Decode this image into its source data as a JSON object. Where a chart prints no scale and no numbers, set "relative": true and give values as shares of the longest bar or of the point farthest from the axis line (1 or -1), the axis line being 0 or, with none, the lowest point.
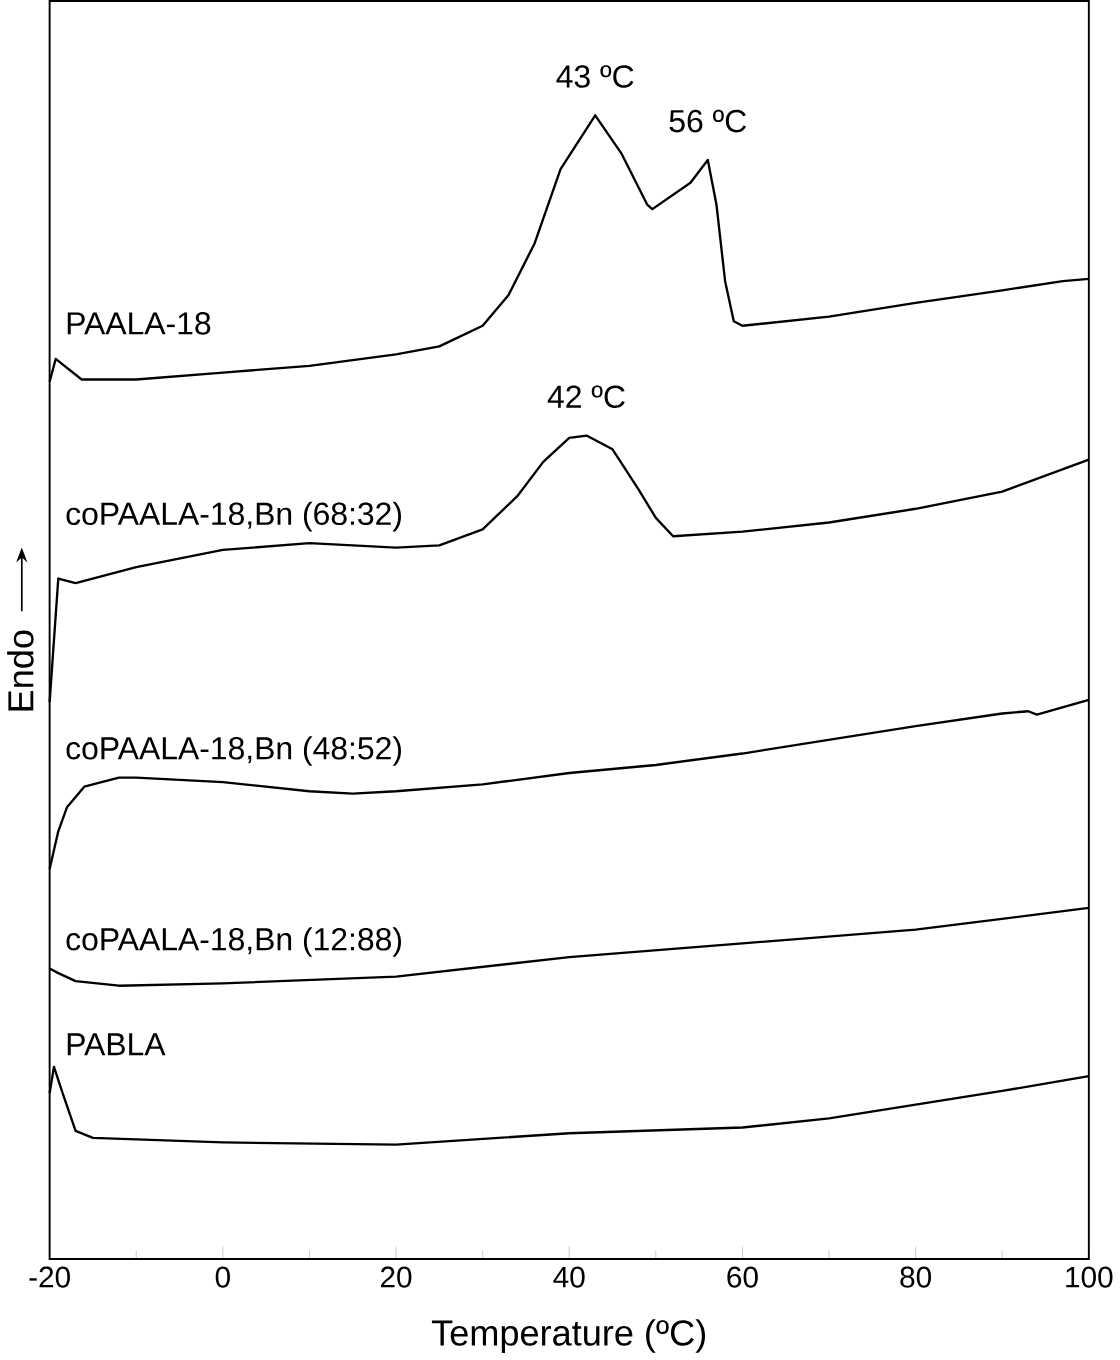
{
  "chart_data": {
    "type": "line",
    "xlabel": "Temperature (ºC)",
    "ylabel": "Endo",
    "relative": true,
    "xlim": [
      -20,
      100
    ],
    "xticks": [
      -20,
      0,
      20,
      40,
      60,
      80,
      100
    ],
    "tick_labels": "x",
    "legend": false,
    "grid": false,
    "marker": "none",
    "line_style": "solid",
    "series": [
      {
        "name": "PAALA-18",
        "color": "#000000",
        "x": [
          -20,
          -19.3,
          -16.3,
          -10,
          0,
          10,
          20,
          25,
          30,
          33,
          36,
          39,
          43,
          46,
          49,
          49.6,
          54,
          56,
          57,
          58,
          59,
          60,
          70,
          80,
          90,
          97,
          100
        ],
        "values": [
          0.767,
          0.787,
          0.769,
          0.769,
          0.775,
          0.781,
          0.791,
          0.798,
          0.816,
          0.843,
          0.888,
          0.953,
          1.0,
          0.967,
          0.922,
          0.918,
          0.941,
          0.961,
          0.922,
          0.855,
          0.82,
          0.816,
          0.824,
          0.836,
          0.847,
          0.855,
          0.857
        ]
      },
      {
        "name": "coPAALA-18,Bn (68:32)",
        "color": "#000000",
        "x": [
          -20,
          -19,
          -17,
          -10,
          0,
          10,
          20,
          25,
          30,
          34,
          37,
          40,
          42,
          45,
          48,
          50,
          52,
          60,
          70,
          80,
          90,
          100
        ],
        "values": [
          0.487,
          0.595,
          0.591,
          0.605,
          0.62,
          0.626,
          0.622,
          0.624,
          0.638,
          0.667,
          0.697,
          0.718,
          0.72,
          0.708,
          0.673,
          0.648,
          0.632,
          0.636,
          0.644,
          0.656,
          0.671,
          0.699
        ]
      },
      {
        "name": "coPAALA-18,Bn (48:52)",
        "color": "#000000",
        "x": [
          -20,
          -19,
          -18,
          -16,
          -12,
          -10,
          0,
          10,
          15,
          20,
          30,
          40,
          50,
          60,
          70,
          80,
          90,
          93,
          94,
          100
        ],
        "values": [
          0.341,
          0.374,
          0.395,
          0.413,
          0.421,
          0.421,
          0.417,
          0.409,
          0.407,
          0.409,
          0.415,
          0.425,
          0.432,
          0.442,
          0.454,
          0.466,
          0.477,
          0.479,
          0.476,
          0.489
        ]
      },
      {
        "name": "coPAALA-18,Bn (12:88)",
        "color": "#000000",
        "x": [
          -20,
          -19,
          -17,
          -12,
          0,
          20,
          40,
          60,
          80,
          100
        ],
        "values": [
          0.254,
          0.25,
          0.243,
          0.239,
          0.241,
          0.247,
          0.264,
          0.276,
          0.288,
          0.307
        ]
      },
      {
        "name": "PABLA",
        "color": "#000000",
        "x": [
          -20,
          -19.5,
          -18.5,
          -17,
          -15,
          0,
          20,
          40,
          60,
          70,
          80,
          90,
          100
        ],
        "values": [
          0.145,
          0.168,
          0.145,
          0.112,
          0.106,
          0.102,
          0.1,
          0.11,
          0.115,
          0.123,
          0.135,
          0.147,
          0.16
        ]
      }
    ],
    "annotations": [
      {
        "text": "43 ºC",
        "x": 43,
        "y": 1.0
      },
      {
        "text": "56 ºC",
        "x": 56,
        "y": 0.961
      },
      {
        "text": "42 ºC",
        "x": 42,
        "y": 0.72
      }
    ]
  }
}
